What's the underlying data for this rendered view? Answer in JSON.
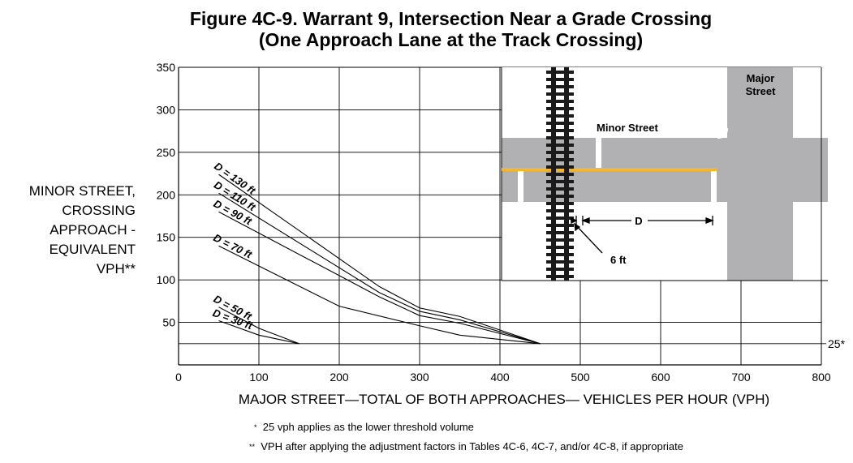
{
  "title_line1": "Figure 4C-9.  Warrant 9, Intersection Near a Grade Crossing",
  "title_line2": "(One Approach Lane at the Track Crossing)",
  "ylabel_lines": [
    "MINOR STREET,",
    "CROSSING",
    "APPROACH -",
    "EQUIVALENT",
    "VPH**"
  ],
  "footnotes": [
    {
      "mark": "*",
      "text": "25 vph applies as the lower threshold volume"
    },
    {
      "mark": "**",
      "text": "VPH after applying the adjustment factors in Tables 4C-6, 4C-7, and/or 4C-8, if appropriate"
    }
  ],
  "inset": {
    "major_street": "Major\nStreet",
    "minor_street": "Minor Street",
    "d_label": "D",
    "six_ft": "6 ft"
  },
  "colors": {
    "road": "#b1b1b3",
    "centerline": "#f2b632",
    "track": "#1a1a1a"
  },
  "chart_data": {
    "type": "line",
    "xlabel": "MAJOR STREET—TOTAL OF BOTH APPROACHES— VEHICLES PER HOUR (VPH)",
    "ylabel": "MINOR STREET, CROSSING APPROACH - EQUIVALENT VPH**",
    "xlim": [
      0,
      800
    ],
    "ylim": [
      0,
      350
    ],
    "xticks": [
      0,
      100,
      200,
      300,
      400,
      500,
      600,
      700,
      800
    ],
    "yticks": [
      50,
      100,
      150,
      200,
      250,
      300,
      350
    ],
    "grid": true,
    "threshold": {
      "y": 25,
      "label": "25*"
    },
    "series": [
      {
        "name": "D = 130 ft",
        "x": [
          50,
          250,
          300,
          350,
          450
        ],
        "y": [
          224,
          92,
          67,
          57,
          25
        ]
      },
      {
        "name": "D = 110 ft",
        "x": [
          50,
          250,
          300,
          350,
          450
        ],
        "y": [
          202,
          85,
          63,
          53,
          25
        ]
      },
      {
        "name": "D = 90 ft",
        "x": [
          50,
          250,
          300,
          350,
          450
        ],
        "y": [
          180,
          80,
          58,
          49,
          25
        ]
      },
      {
        "name": "D = 70 ft",
        "x": [
          50,
          200,
          300,
          350,
          450
        ],
        "y": [
          140,
          69,
          46,
          35,
          25
        ]
      },
      {
        "name": "D = 50 ft",
        "x": [
          50,
          100,
          150
        ],
        "y": [
          68,
          43,
          25
        ]
      },
      {
        "name": "D = 30 ft",
        "x": [
          50,
          100,
          150
        ],
        "y": [
          52,
          35,
          25
        ]
      }
    ],
    "label_offsets_note": ""
  }
}
